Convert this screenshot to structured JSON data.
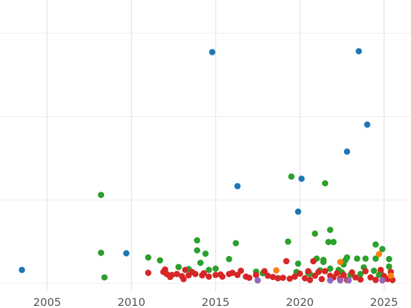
{
  "chart_data": {
    "type": "scatter",
    "title": "",
    "xlabel": "",
    "ylabel": "",
    "xlim": [
      2002.2,
      2026.6
    ],
    "ylim": [
      -0.2,
      6.8
    ],
    "x_ticks": [
      2005,
      2010,
      2015,
      2020,
      2025
    ],
    "x_tick_labels": [
      "2005",
      "2010",
      "2015",
      "2020",
      "2025"
    ],
    "y_gridlines": [
      0,
      2,
      4,
      6
    ],
    "y_tick_labels_visible": false,
    "grid": "on",
    "legend": "none",
    "series": [
      {
        "color": "#1f77b4",
        "points": [
          [
            2003.5,
            0.32
          ],
          [
            2009.7,
            0.72
          ],
          [
            2014.8,
            5.55
          ],
          [
            2016.3,
            2.33
          ],
          [
            2019.9,
            1.72
          ],
          [
            2020.1,
            2.51
          ],
          [
            2022.8,
            3.16
          ],
          [
            2023.5,
            5.57
          ],
          [
            2024.0,
            3.81
          ]
        ]
      },
      {
        "color": "#2ca02c",
        "points": [
          [
            2008.2,
            2.12
          ],
          [
            2008.2,
            0.73
          ],
          [
            2008.4,
            0.14
          ],
          [
            2011.0,
            0.62
          ],
          [
            2011.7,
            0.55
          ],
          [
            2012.8,
            0.39
          ],
          [
            2013.4,
            0.34
          ],
          [
            2013.9,
            1.03
          ],
          [
            2013.9,
            0.79
          ],
          [
            2014.1,
            0.49
          ],
          [
            2014.4,
            0.71
          ],
          [
            2014.6,
            0.32
          ],
          [
            2015.0,
            0.35
          ],
          [
            2015.8,
            0.58
          ],
          [
            2016.2,
            0.96
          ],
          [
            2017.4,
            0.28
          ],
          [
            2017.8,
            0.24
          ],
          [
            2019.3,
            1.0
          ],
          [
            2019.5,
            2.56
          ],
          [
            2019.8,
            0.27
          ],
          [
            2019.9,
            0.47
          ],
          [
            2020.5,
            0.25
          ],
          [
            2020.6,
            0.22
          ],
          [
            2020.9,
            1.19
          ],
          [
            2021.0,
            0.59
          ],
          [
            2021.2,
            0.31
          ],
          [
            2021.4,
            0.56
          ],
          [
            2021.4,
            0.51
          ],
          [
            2021.5,
            2.4
          ],
          [
            2021.7,
            0.99
          ],
          [
            2021.8,
            1.28
          ],
          [
            2021.8,
            0.35
          ],
          [
            2022.0,
            0.99
          ],
          [
            2022.3,
            0.32
          ],
          [
            2022.5,
            0.26
          ],
          [
            2022.6,
            0.45
          ],
          [
            2022.7,
            0.55
          ],
          [
            2022.8,
            0.62
          ],
          [
            2023.0,
            0.2
          ],
          [
            2023.4,
            0.59
          ],
          [
            2023.6,
            0.22
          ],
          [
            2023.8,
            0.38
          ],
          [
            2023.9,
            0.59
          ],
          [
            2024.4,
            0.3
          ],
          [
            2024.5,
            0.59
          ],
          [
            2024.5,
            0.93
          ],
          [
            2024.7,
            0.2
          ],
          [
            2024.8,
            0.25
          ],
          [
            2024.9,
            0.82
          ],
          [
            2025.3,
            0.58
          ],
          [
            2025.3,
            0.4
          ]
        ]
      },
      {
        "color": "#d62728",
        "points": [
          [
            2011.0,
            0.25
          ],
          [
            2011.9,
            0.27
          ],
          [
            2012.0,
            0.33
          ],
          [
            2012.1,
            0.22
          ],
          [
            2012.3,
            0.15
          ],
          [
            2012.4,
            0.2
          ],
          [
            2012.7,
            0.22
          ],
          [
            2013.0,
            0.17
          ],
          [
            2013.1,
            0.1
          ],
          [
            2013.2,
            0.32
          ],
          [
            2013.4,
            0.19
          ],
          [
            2013.6,
            0.27
          ],
          [
            2013.8,
            0.22
          ],
          [
            2014.2,
            0.19
          ],
          [
            2014.3,
            0.24
          ],
          [
            2014.6,
            0.16
          ],
          [
            2015.0,
            0.2
          ],
          [
            2015.3,
            0.21
          ],
          [
            2015.4,
            0.16
          ],
          [
            2015.8,
            0.22
          ],
          [
            2016.0,
            0.25
          ],
          [
            2016.3,
            0.2
          ],
          [
            2016.5,
            0.3
          ],
          [
            2016.8,
            0.16
          ],
          [
            2017.0,
            0.13
          ],
          [
            2017.4,
            0.2
          ],
          [
            2017.9,
            0.29
          ],
          [
            2018.1,
            0.18
          ],
          [
            2018.4,
            0.15
          ],
          [
            2018.7,
            0.12
          ],
          [
            2019.0,
            0.13
          ],
          [
            2019.2,
            0.53
          ],
          [
            2019.4,
            0.11
          ],
          [
            2019.7,
            0.16
          ],
          [
            2020.0,
            0.23
          ],
          [
            2020.3,
            0.12
          ],
          [
            2020.5,
            0.29
          ],
          [
            2020.6,
            0.08
          ],
          [
            2020.8,
            0.53
          ],
          [
            2020.9,
            0.18
          ],
          [
            2021.1,
            0.27
          ],
          [
            2021.3,
            0.1
          ],
          [
            2021.5,
            0.29
          ],
          [
            2021.8,
            0.18
          ],
          [
            2022.0,
            0.14
          ],
          [
            2022.2,
            0.24
          ],
          [
            2022.4,
            0.11
          ],
          [
            2022.6,
            0.2
          ],
          [
            2022.8,
            0.08
          ],
          [
            2023.1,
            0.26
          ],
          [
            2023.3,
            0.14
          ],
          [
            2023.6,
            0.09
          ],
          [
            2023.9,
            0.29
          ],
          [
            2024.2,
            0.14
          ],
          [
            2024.5,
            0.08
          ],
          [
            2024.8,
            0.32
          ],
          [
            2025.0,
            0.17
          ],
          [
            2025.2,
            0.1
          ],
          [
            2025.4,
            0.27
          ],
          [
            2025.5,
            0.08
          ]
        ]
      },
      {
        "color": "#ff7f0e",
        "points": [
          [
            2018.6,
            0.31
          ],
          [
            2022.4,
            0.51
          ],
          [
            2024.7,
            0.7
          ],
          [
            2025.4,
            0.18
          ]
        ]
      },
      {
        "color": "#9467bd",
        "points": [
          [
            2017.5,
            0.07
          ],
          [
            2021.8,
            0.07
          ],
          [
            2022.4,
            0.07
          ],
          [
            2022.9,
            0.07
          ],
          [
            2024.9,
            0.07
          ]
        ]
      }
    ]
  }
}
